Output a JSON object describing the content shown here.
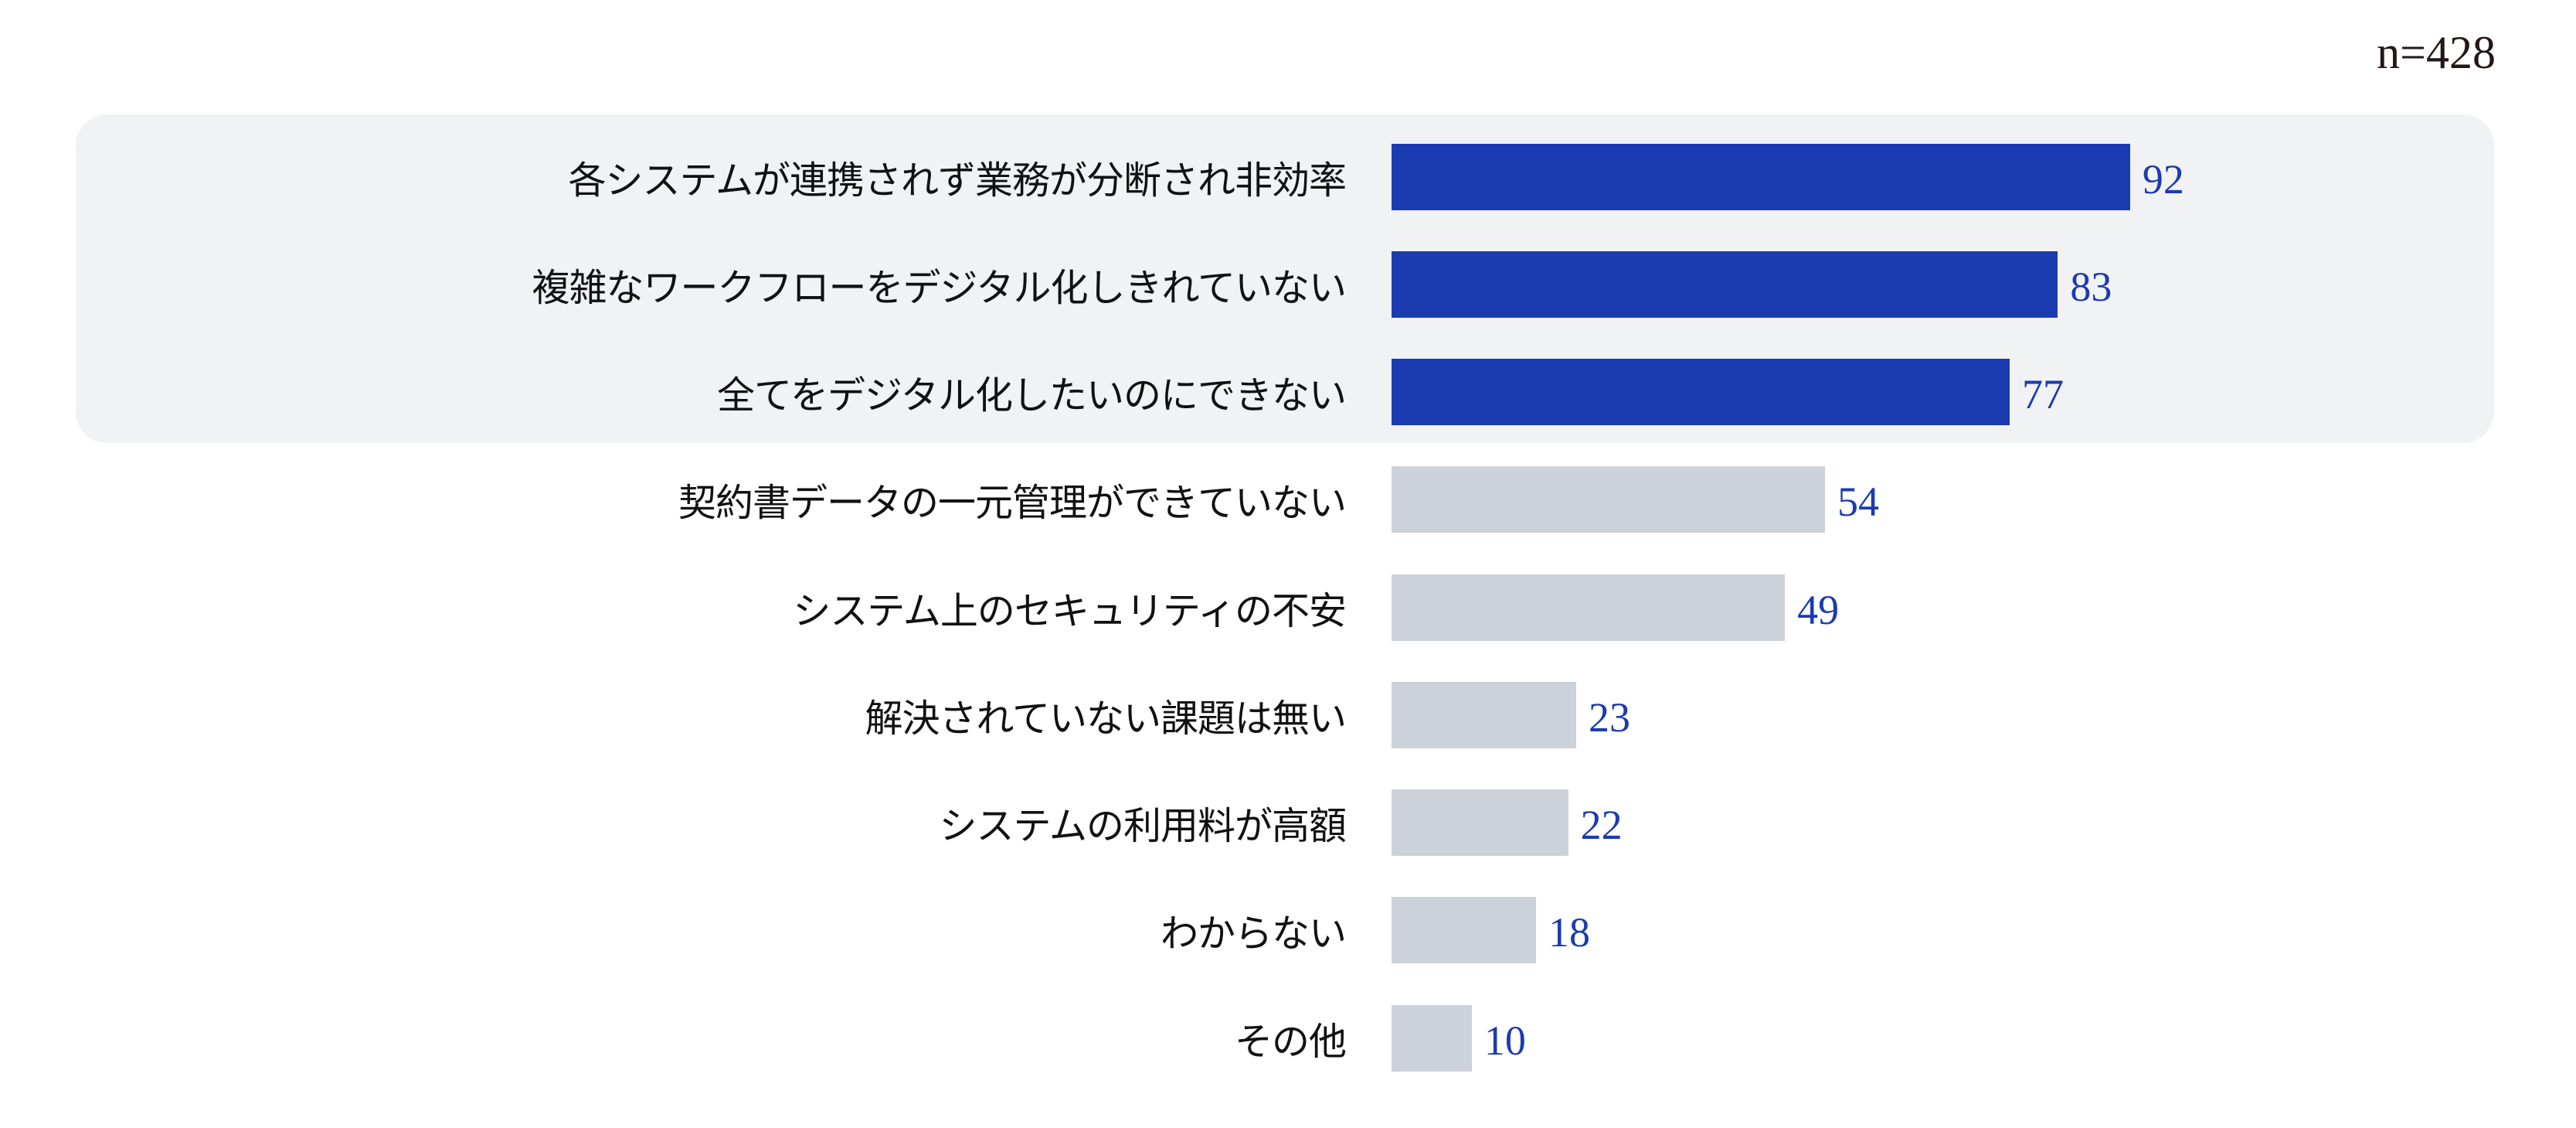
{
  "sample_size": "n=428",
  "colors": {
    "highlight_bar": "#1b3bb0",
    "normal_bar": "#cdd1d9",
    "value_text": "#1b3bb0",
    "highlight_panel": "#f1f2f4"
  },
  "rows": [
    {
      "label": "各システムが連携されず業務が分断され非効率",
      "value": "92",
      "highlight": true
    },
    {
      "label": "複雑なワークフローをデジタル化しきれていない",
      "value": "83",
      "highlight": true
    },
    {
      "label": "全てをデジタル化したいのにできない",
      "value": "77",
      "highlight": true
    },
    {
      "label": "契約書データの一元管理ができていない",
      "value": "54",
      "highlight": false
    },
    {
      "label": "システム上のセキュリティの不安",
      "value": "49",
      "highlight": false
    },
    {
      "label": "解決されていない課題は無い",
      "value": "23",
      "highlight": false
    },
    {
      "label": "システムの利用料が高額",
      "value": "22",
      "highlight": false
    },
    {
      "label": "わからない",
      "value": "18",
      "highlight": false
    },
    {
      "label": "その他",
      "value": "10",
      "highlight": false
    }
  ],
  "chart_data": {
    "type": "bar",
    "orientation": "horizontal",
    "title": "",
    "annotation": "n=428",
    "categories": [
      "各システムが連携されず業務が分断され非効率",
      "複雑なワークフローをデジタル化しきれていない",
      "全てをデジタル化したいのにできない",
      "契約書データの一元管理ができていない",
      "システム上のセキュリティの不安",
      "解決されていない課題は無い",
      "システムの利用料が高額",
      "わからない",
      "その他"
    ],
    "values": [
      92,
      83,
      77,
      54,
      49,
      23,
      22,
      18,
      10
    ],
    "highlighted_categories": [
      0,
      1,
      2
    ],
    "xlabel": "",
    "ylabel": "",
    "grid": false,
    "legend": null,
    "data_labels": true
  }
}
